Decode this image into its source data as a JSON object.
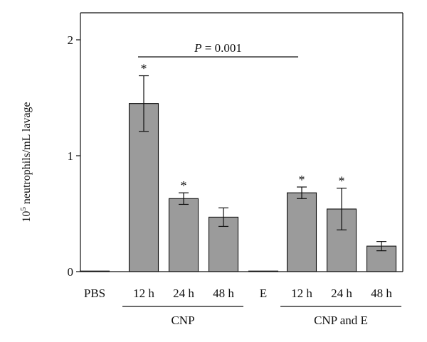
{
  "chart_data": {
    "type": "bar",
    "ylabel_base": "10",
    "ylabel_exp": "5",
    "ylabel_rest": " neutrophils/mL lavage",
    "ylim": [
      0,
      2.2
    ],
    "yticks": [
      0,
      1,
      2
    ],
    "categories": [
      "PBS",
      "12 h",
      "24 h",
      "48 h",
      "E",
      "12 h",
      "24 h",
      "48 h"
    ],
    "values": [
      0.0,
      1.45,
      0.63,
      0.47,
      0.0,
      0.68,
      0.54,
      0.22
    ],
    "errors": [
      0.0,
      0.24,
      0.05,
      0.08,
      0.0,
      0.05,
      0.18,
      0.04
    ],
    "significant": [
      false,
      true,
      true,
      false,
      false,
      true,
      true,
      false
    ],
    "significance_marker": "*",
    "groups": [
      {
        "label": "CNP",
        "from": 1,
        "to": 3
      },
      {
        "label": "CNP and E",
        "from": 5,
        "to": 7
      }
    ],
    "comparison": {
      "from": 1,
      "to": 5,
      "label_italic": "P",
      "label_rest": " = 0.001"
    },
    "bar_color": "#9b9b9b",
    "grid": false
  }
}
